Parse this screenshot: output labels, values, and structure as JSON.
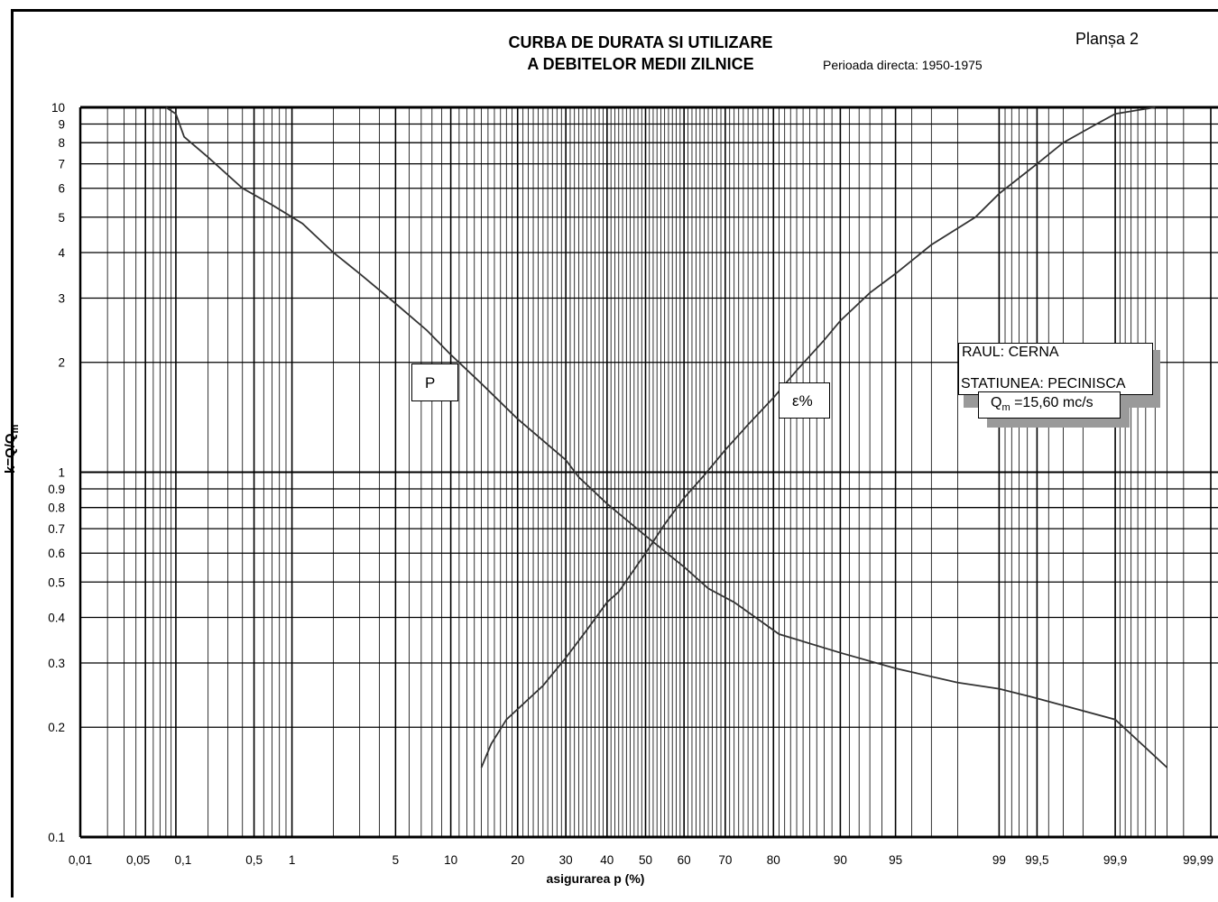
{
  "header": {
    "title_line1": "CURBA DE DURATA SI UTILIZARE",
    "title_line2": "A DEBITELOR MEDII ZILNICE",
    "period": "Perioada directa:  1950-1975",
    "plate": "Planșa 2"
  },
  "info_box": {
    "river": "RAUL: CERNA",
    "station": "STATIUNEA: PECINISCA",
    "qm_symbol": "Q",
    "qm_sub": "m",
    "qm_value": " =15,60 mc/s"
  },
  "chart_data": {
    "type": "line",
    "title": "CURBA DE DURATA SI UTILIZARE A DEBITELOR MEDII ZILNICE",
    "xlabel": "asigurarea p (%)",
    "ylabel_main": "k=Q/Q",
    "ylabel_sub": "m",
    "x_scale": "probability (normal)",
    "y_scale": "log",
    "ylim": [
      0.1,
      10
    ],
    "xlim": [
      0.01,
      99.99
    ],
    "grid": true,
    "x_tick_labels": [
      {
        "v": 0.01,
        "t": "0,01"
      },
      {
        "v": 0.05,
        "t": "0,05"
      },
      {
        "v": 0.1,
        "t": "0,1"
      },
      {
        "v": 0.5,
        "t": "0,5"
      },
      {
        "v": 1,
        "t": "1"
      },
      {
        "v": 5,
        "t": "5"
      },
      {
        "v": 10,
        "t": "10"
      },
      {
        "v": 20,
        "t": "20"
      },
      {
        "v": 30,
        "t": "30"
      },
      {
        "v": 40,
        "t": "40"
      },
      {
        "v": 50,
        "t": "50"
      },
      {
        "v": 60,
        "t": "60"
      },
      {
        "v": 70,
        "t": "70"
      },
      {
        "v": 80,
        "t": "80"
      },
      {
        "v": 90,
        "t": "90"
      },
      {
        "v": 95,
        "t": "95"
      },
      {
        "v": 99,
        "t": "99"
      },
      {
        "v": 99.5,
        "t": "99,5"
      },
      {
        "v": 99.9,
        "t": "99,9"
      },
      {
        "v": 99.99,
        "t": "99,99"
      }
    ],
    "y_tick_labels": [
      {
        "v": 10,
        "t": "10"
      },
      {
        "v": 9,
        "t": "9"
      },
      {
        "v": 8,
        "t": "8"
      },
      {
        "v": 7,
        "t": "7"
      },
      {
        "v": 6,
        "t": "6"
      },
      {
        "v": 5,
        "t": "5"
      },
      {
        "v": 4,
        "t": "4"
      },
      {
        "v": 3,
        "t": "3"
      },
      {
        "v": 2,
        "t": "2"
      },
      {
        "v": 1,
        "t": "1"
      },
      {
        "v": 0.9,
        "t": "0.9"
      },
      {
        "v": 0.8,
        "t": "0.8"
      },
      {
        "v": 0.7,
        "t": "0.7"
      },
      {
        "v": 0.6,
        "t": "0.6"
      },
      {
        "v": 0.5,
        "t": "0.5"
      },
      {
        "v": 0.4,
        "t": "0.4"
      },
      {
        "v": 0.3,
        "t": "0.3"
      },
      {
        "v": 0.2,
        "t": "0.2"
      },
      {
        "v": 0.1,
        "t": "0.1"
      }
    ],
    "series": [
      {
        "name": "P",
        "points": [
          [
            0.08,
            10
          ],
          [
            0.1,
            9.6
          ],
          [
            0.12,
            8.3
          ],
          [
            0.2,
            7.3
          ],
          [
            0.4,
            6.0
          ],
          [
            0.7,
            5.4
          ],
          [
            1.2,
            4.8
          ],
          [
            2,
            4.0
          ],
          [
            3,
            3.5
          ],
          [
            5,
            2.9
          ],
          [
            7.5,
            2.45
          ],
          [
            10,
            2.1
          ],
          [
            14,
            1.75
          ],
          [
            20,
            1.4
          ],
          [
            30,
            1.08
          ],
          [
            33,
            0.97
          ],
          [
            40,
            0.82
          ],
          [
            50,
            0.67
          ],
          [
            60,
            0.55
          ],
          [
            66,
            0.48
          ],
          [
            72,
            0.44
          ],
          [
            81,
            0.36
          ],
          [
            90,
            0.32
          ],
          [
            95,
            0.29
          ],
          [
            98,
            0.265
          ],
          [
            99,
            0.255
          ],
          [
            99.5,
            0.24
          ],
          [
            99.9,
            0.21
          ],
          [
            99.97,
            0.155
          ]
        ]
      },
      {
        "name": "ε%",
        "points": [
          [
            14,
            0.155
          ],
          [
            15.5,
            0.18
          ],
          [
            18,
            0.21
          ],
          [
            25,
            0.26
          ],
          [
            30,
            0.31
          ],
          [
            35,
            0.37
          ],
          [
            40,
            0.44
          ],
          [
            43,
            0.47
          ],
          [
            50,
            0.6
          ],
          [
            55,
            0.72
          ],
          [
            60,
            0.85
          ],
          [
            65,
            0.98
          ],
          [
            70,
            1.15
          ],
          [
            75,
            1.35
          ],
          [
            80,
            1.6
          ],
          [
            84,
            1.9
          ],
          [
            88,
            2.3
          ],
          [
            90,
            2.6
          ],
          [
            93,
            3.1
          ],
          [
            95,
            3.5
          ],
          [
            97,
            4.2
          ],
          [
            98.5,
            5.0
          ],
          [
            99,
            5.8
          ],
          [
            99.5,
            7.0
          ],
          [
            99.7,
            8.0
          ],
          [
            99.85,
            9.0
          ],
          [
            99.9,
            9.6
          ],
          [
            99.96,
            10
          ]
        ]
      }
    ],
    "curve_labels": [
      {
        "text": "P"
      },
      {
        "text": "ε%"
      }
    ]
  }
}
